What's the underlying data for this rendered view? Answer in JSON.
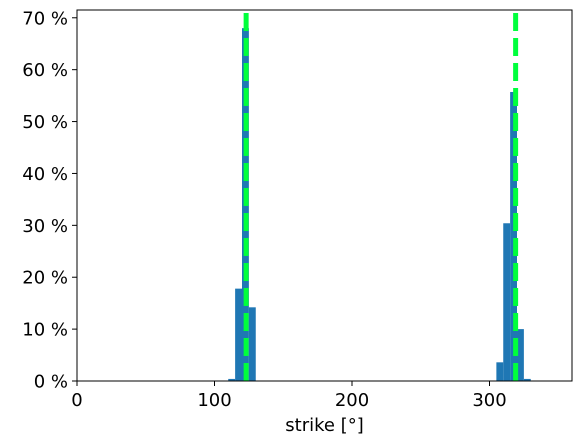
{
  "chart_data": {
    "type": "bar",
    "title": "",
    "xlabel": "strike [°]",
    "ylabel": "",
    "xlim": [
      0,
      360
    ],
    "ylim": [
      0,
      71.5
    ],
    "bin_width": 5,
    "x_ticks": [
      {
        "value": 0,
        "label": "0"
      },
      {
        "value": 100,
        "label": "100"
      },
      {
        "value": 200,
        "label": "200"
      },
      {
        "value": 300,
        "label": "300"
      }
    ],
    "y_ticks": [
      {
        "value": 0,
        "label": "0 %"
      },
      {
        "value": 10,
        "label": "10 %"
      },
      {
        "value": 20,
        "label": "20 %"
      },
      {
        "value": 30,
        "label": "30 %"
      },
      {
        "value": 40,
        "label": "40 %"
      },
      {
        "value": 50,
        "label": "50 %"
      },
      {
        "value": 60,
        "label": "60 %"
      },
      {
        "value": 70,
        "label": "70 %"
      }
    ],
    "bars": [
      {
        "x": 110,
        "value": 0.4
      },
      {
        "x": 115,
        "value": 17.8
      },
      {
        "x": 120,
        "value": 68.0
      },
      {
        "x": 125,
        "value": 14.2
      },
      {
        "x": 305,
        "value": 3.6
      },
      {
        "x": 310,
        "value": 30.4
      },
      {
        "x": 315,
        "value": 55.7
      },
      {
        "x": 320,
        "value": 10.0
      },
      {
        "x": 325,
        "value": 0.4
      }
    ],
    "reference_lines": [
      {
        "x": 123
      },
      {
        "x": 319
      }
    ],
    "colors": {
      "bar": "#1f77b4",
      "reference_line": "#00ff3c"
    },
    "grid": false,
    "legend": "none"
  }
}
